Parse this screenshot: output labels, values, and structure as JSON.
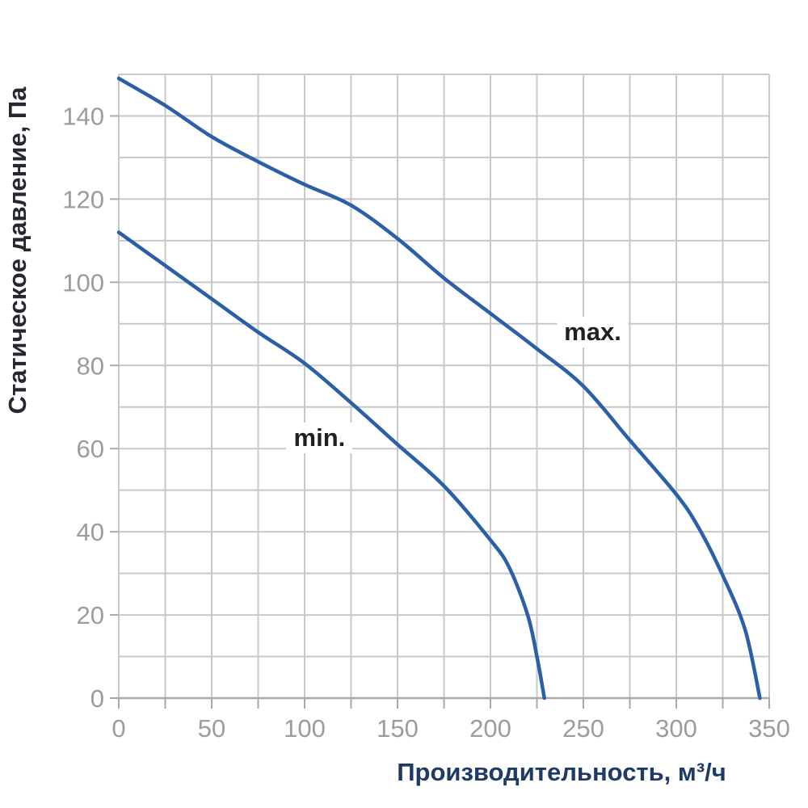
{
  "chart_data": {
    "type": "line",
    "title": "",
    "xlabel": "Производительность, м³/ч",
    "ylabel": "Статическое давление, Па",
    "xlim": [
      0,
      350
    ],
    "ylim": [
      0,
      150
    ],
    "x_tick_labels": [
      0,
      50,
      100,
      150,
      200,
      250,
      300,
      350
    ],
    "y_tick_labels": [
      0,
      20,
      40,
      60,
      80,
      100,
      120,
      140
    ],
    "x_grid_step": 25,
    "y_grid_step": 10,
    "grid": true,
    "legend_position": "inline-labels",
    "series": [
      {
        "name": "max.",
        "label_pos": {
          "x": 255,
          "y": 88
        },
        "points": [
          [
            0,
            149
          ],
          [
            25,
            142.5
          ],
          [
            50,
            135
          ],
          [
            75,
            129
          ],
          [
            100,
            123.5
          ],
          [
            125,
            118.5
          ],
          [
            150,
            110.5
          ],
          [
            175,
            101
          ],
          [
            200,
            92.5
          ],
          [
            225,
            84
          ],
          [
            250,
            75
          ],
          [
            275,
            62
          ],
          [
            300,
            49
          ],
          [
            312,
            41
          ],
          [
            325,
            29.5
          ],
          [
            337,
            16.5
          ],
          [
            345,
            0
          ]
        ]
      },
      {
        "name": "min.",
        "label_pos": {
          "x": 108,
          "y": 62.5
        },
        "points": [
          [
            0,
            112
          ],
          [
            25,
            104
          ],
          [
            50,
            96
          ],
          [
            75,
            88
          ],
          [
            100,
            80.5
          ],
          [
            125,
            71
          ],
          [
            150,
            61
          ],
          [
            175,
            51
          ],
          [
            200,
            38
          ],
          [
            210,
            31.5
          ],
          [
            220,
            20
          ],
          [
            225,
            10
          ],
          [
            229,
            0
          ]
        ]
      }
    ],
    "colors": {
      "curve": "#2b5fa7",
      "grid": "#c8c8c8",
      "axis": "#a9a9a9",
      "tick_text": "#9c9c9c",
      "x_title": "#1e3a66",
      "y_title": "#262830",
      "curve_label": "#221f1f",
      "background": "#ffffff"
    }
  }
}
